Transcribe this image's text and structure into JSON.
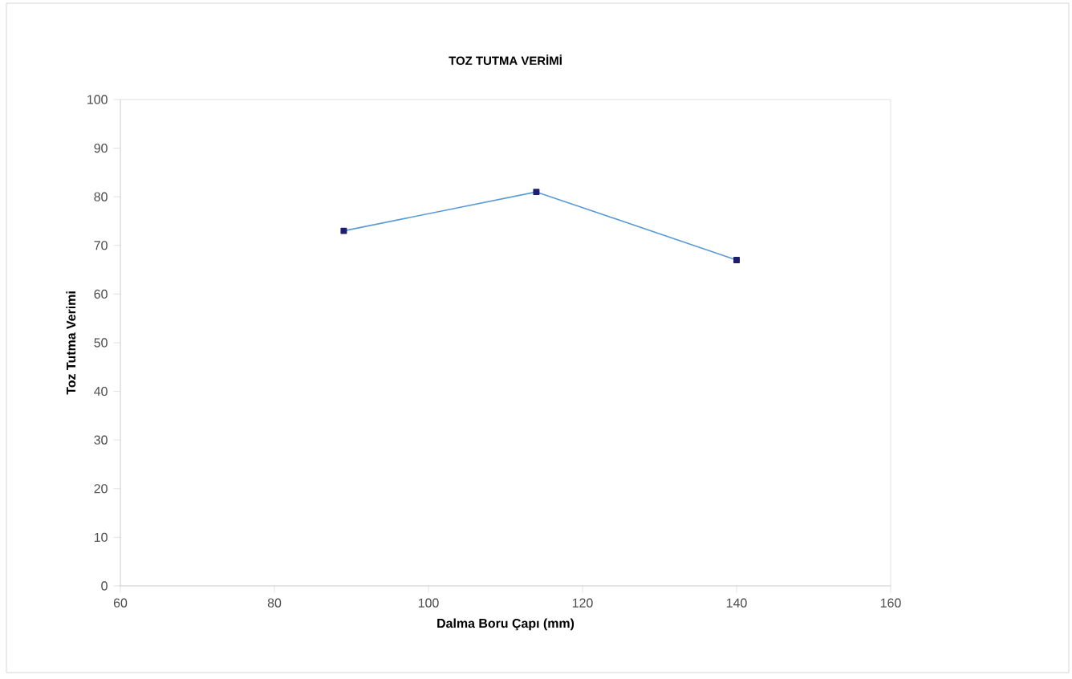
{
  "chart_data": {
    "type": "line",
    "title": "TOZ TUTMA VERİMİ",
    "xlabel": "Dalma Boru Çapı (mm)",
    "ylabel": "Toz Tutma Verimi",
    "x": [
      89,
      114,
      140
    ],
    "series": [
      {
        "color": "#5b9bd5",
        "values": [
          73,
          81,
          67
        ]
      }
    ],
    "marker": "square",
    "xlim": [
      60,
      160
    ],
    "ylim": [
      0,
      100
    ],
    "xticks": [
      60,
      80,
      100,
      120,
      140,
      160
    ],
    "yticks": [
      0,
      10,
      20,
      30,
      40,
      50,
      60,
      70,
      80,
      90,
      100
    ]
  }
}
